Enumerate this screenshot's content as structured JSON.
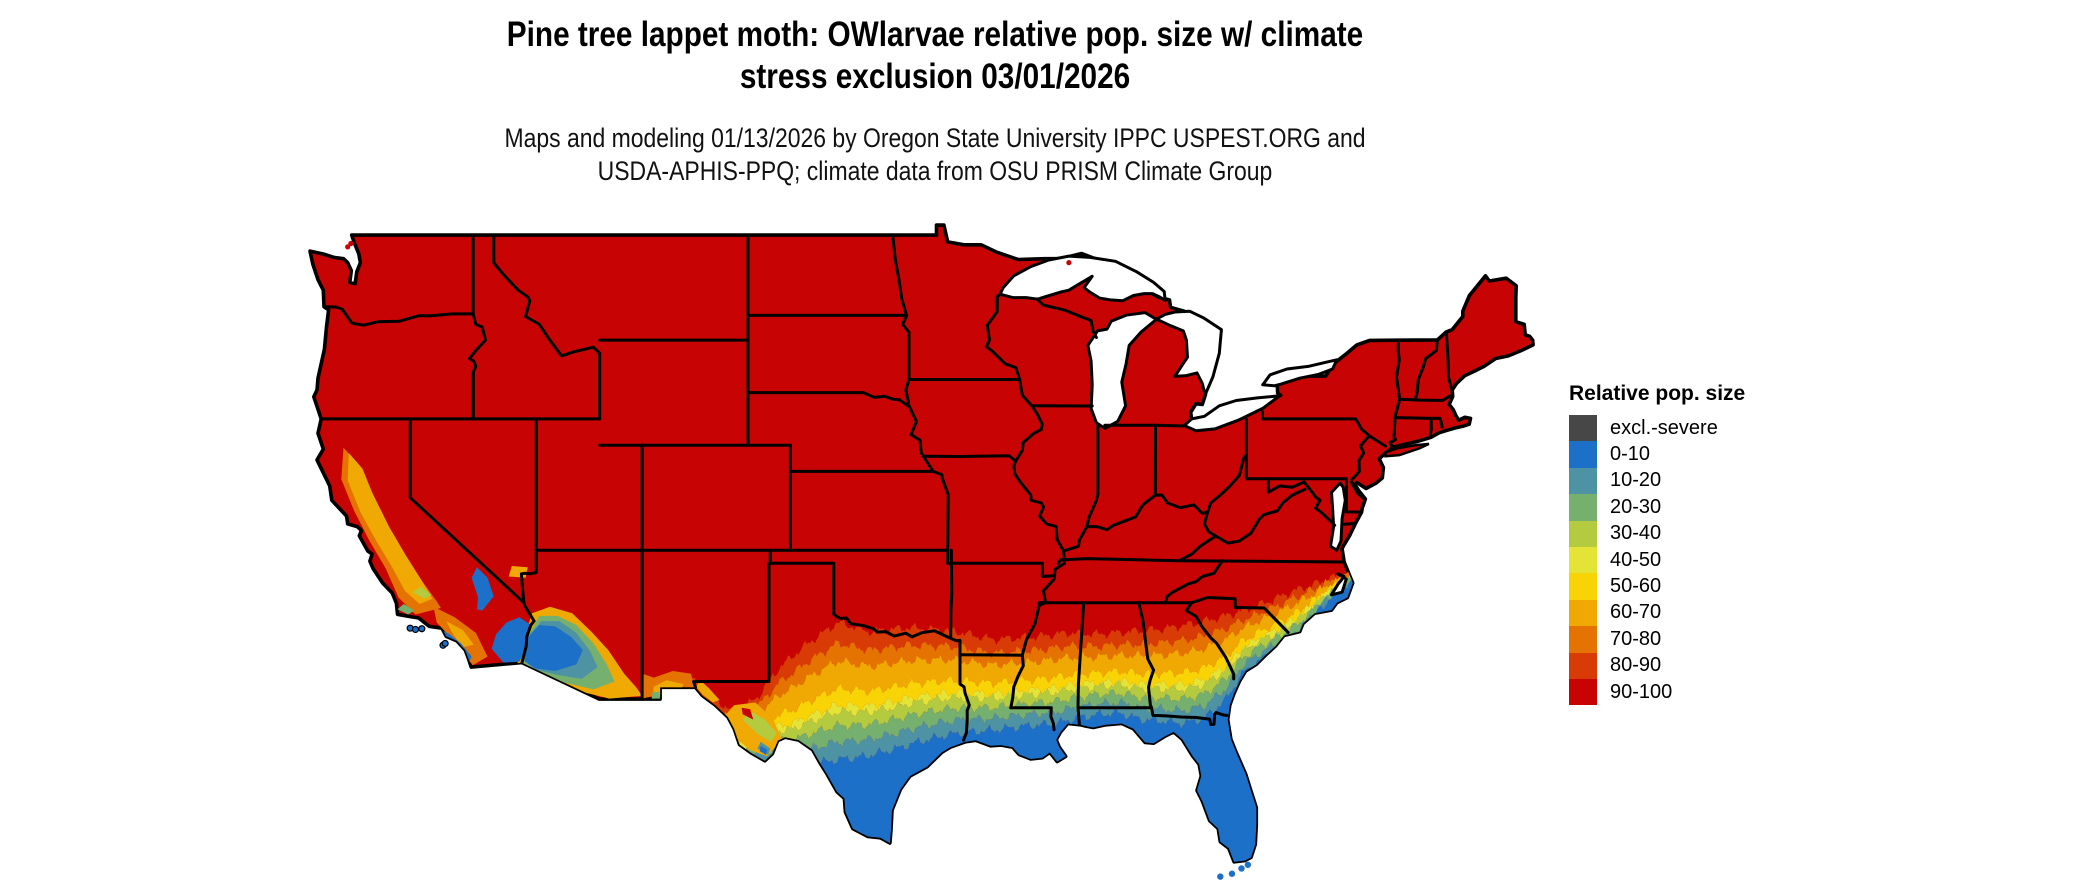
{
  "header": {
    "title_line1": "Pine tree lappet moth: OWlarvae relative pop. size w/ climate",
    "title_line2": "stress exclusion 03/01/2026",
    "subtitle_line1": "Maps and modeling 01/13/2026 by Oregon State University IPPC USPEST.ORG and",
    "subtitle_line2": "USDA-APHIS-PPQ; climate data from OSU PRISM Climate Group"
  },
  "legend": {
    "title": "Relative pop. size",
    "entries": [
      {
        "label": "excl.-severe",
        "color": "#474747"
      },
      {
        "label": "0-10",
        "color": "#1c70c8"
      },
      {
        "label": "10-20",
        "color": "#4e93a4"
      },
      {
        "label": "20-30",
        "color": "#75b06e"
      },
      {
        "label": "30-40",
        "color": "#b4cb40"
      },
      {
        "label": "40-50",
        "color": "#e4e436"
      },
      {
        "label": "50-60",
        "color": "#f8d306"
      },
      {
        "label": "60-70",
        "color": "#f0a803"
      },
      {
        "label": "70-80",
        "color": "#e57301"
      },
      {
        "label": "80-90",
        "color": "#d83b06"
      },
      {
        "label": "90-100",
        "color": "#c70403"
      }
    ]
  },
  "map": {
    "region": "Contiguous United States",
    "background_color": "#ffffff",
    "water_color": "#ffffff",
    "boundary_color": "#000000",
    "dominant_class": "90-100"
  },
  "chart_data": {
    "type": "choropleth-map",
    "title": "Pine tree lappet moth: OWlarvae relative pop. size w/ climate stress exclusion 03/01/2026",
    "legend_title": "Relative pop. size",
    "classes": [
      "excl.-severe",
      "0-10",
      "10-20",
      "20-30",
      "30-40",
      "40-50",
      "50-60",
      "60-70",
      "70-80",
      "80-90",
      "90-100"
    ],
    "pattern_notes": "90-100 (red) covers most of the contiguous US; values grade down through orange, yellow and green to 0-10 (blue) along the Gulf Coast, Florida, south Texas, the desert Southwest (southern Arizona / southeast California) and the southern Atlantic coast; California Central Valley shows 50-70 (gold/orange)."
  }
}
